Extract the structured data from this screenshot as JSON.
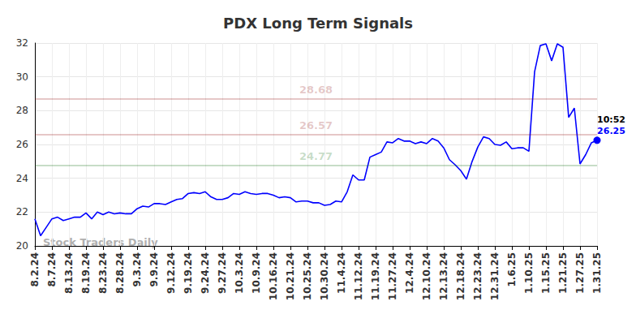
{
  "chart_data": {
    "type": "line",
    "title": "PDX Long Term Signals",
    "watermark": "Stock Traders Daily",
    "categories": [
      "8.2.24",
      null,
      null,
      "8.7.24",
      null,
      null,
      "8.13.24",
      null,
      null,
      "8.19.24",
      null,
      null,
      "8.23.24",
      null,
      null,
      "8.28.24",
      null,
      null,
      "9.3.24",
      null,
      null,
      "9.9.24",
      null,
      null,
      "9.12.24",
      null,
      null,
      "9.19.24",
      null,
      null,
      "9.24.24",
      null,
      null,
      "9.27.24",
      null,
      null,
      "10.3.24",
      null,
      null,
      "10.9.24",
      null,
      null,
      "10.16.24",
      null,
      null,
      "10.21.24",
      null,
      null,
      "10.25.24",
      null,
      null,
      "10.30.24",
      null,
      null,
      "11.4.24",
      null,
      null,
      "11.12.24",
      null,
      null,
      "11.19.24",
      null,
      null,
      "11.27.24",
      null,
      null,
      "12.4.24",
      null,
      null,
      "12.10.24",
      null,
      null,
      "12.13.24",
      null,
      null,
      "12.18.24",
      null,
      null,
      "12.23.24",
      null,
      null,
      "12.31.24",
      null,
      null,
      "1.6.25",
      null,
      null,
      "1.10.25",
      null,
      null,
      "1.15.25",
      null,
      null,
      "1.21.25",
      null,
      null,
      "1.27.25",
      null,
      null,
      "1.31.25"
    ],
    "values": [
      21.6,
      20.6,
      21.1,
      21.6,
      21.7,
      21.5,
      21.6,
      21.7,
      21.7,
      21.95,
      21.6,
      22.0,
      21.85,
      22.0,
      21.9,
      21.95,
      21.9,
      21.9,
      22.2,
      22.35,
      22.3,
      22.5,
      22.5,
      22.45,
      22.6,
      22.75,
      22.8,
      23.1,
      23.15,
      23.1,
      23.2,
      22.9,
      22.75,
      22.75,
      22.85,
      23.1,
      23.05,
      23.2,
      23.1,
      23.05,
      23.1,
      23.1,
      23.0,
      22.85,
      22.9,
      22.85,
      22.6,
      22.65,
      22.65,
      22.55,
      22.55,
      22.4,
      22.45,
      22.65,
      22.6,
      23.2,
      24.2,
      23.9,
      23.9,
      25.25,
      25.4,
      25.55,
      26.15,
      26.1,
      26.35,
      26.2,
      26.2,
      26.05,
      26.15,
      26.05,
      26.35,
      26.2,
      25.8,
      25.1,
      24.8,
      24.45,
      23.95,
      25.0,
      25.85,
      26.45,
      26.35,
      26.0,
      25.95,
      26.15,
      25.75,
      25.8,
      25.8,
      25.6,
      30.3,
      31.85,
      31.95,
      30.95,
      31.95,
      31.75,
      27.6,
      28.15,
      24.85,
      25.4,
      26.1,
      26.25
    ],
    "color": "#0000ff",
    "ylim": [
      20,
      32
    ],
    "yticks": [
      20,
      22,
      24,
      26,
      28,
      30,
      32
    ],
    "grid": true,
    "end_label": {
      "time": "10:52"
    },
    "hlines": [
      {
        "value": 28.68,
        "color": "#8b0000"
      },
      {
        "value": 26.57,
        "color": "#8b0000"
      },
      {
        "value": 24.77,
        "color": "#006400"
      }
    ]
  }
}
